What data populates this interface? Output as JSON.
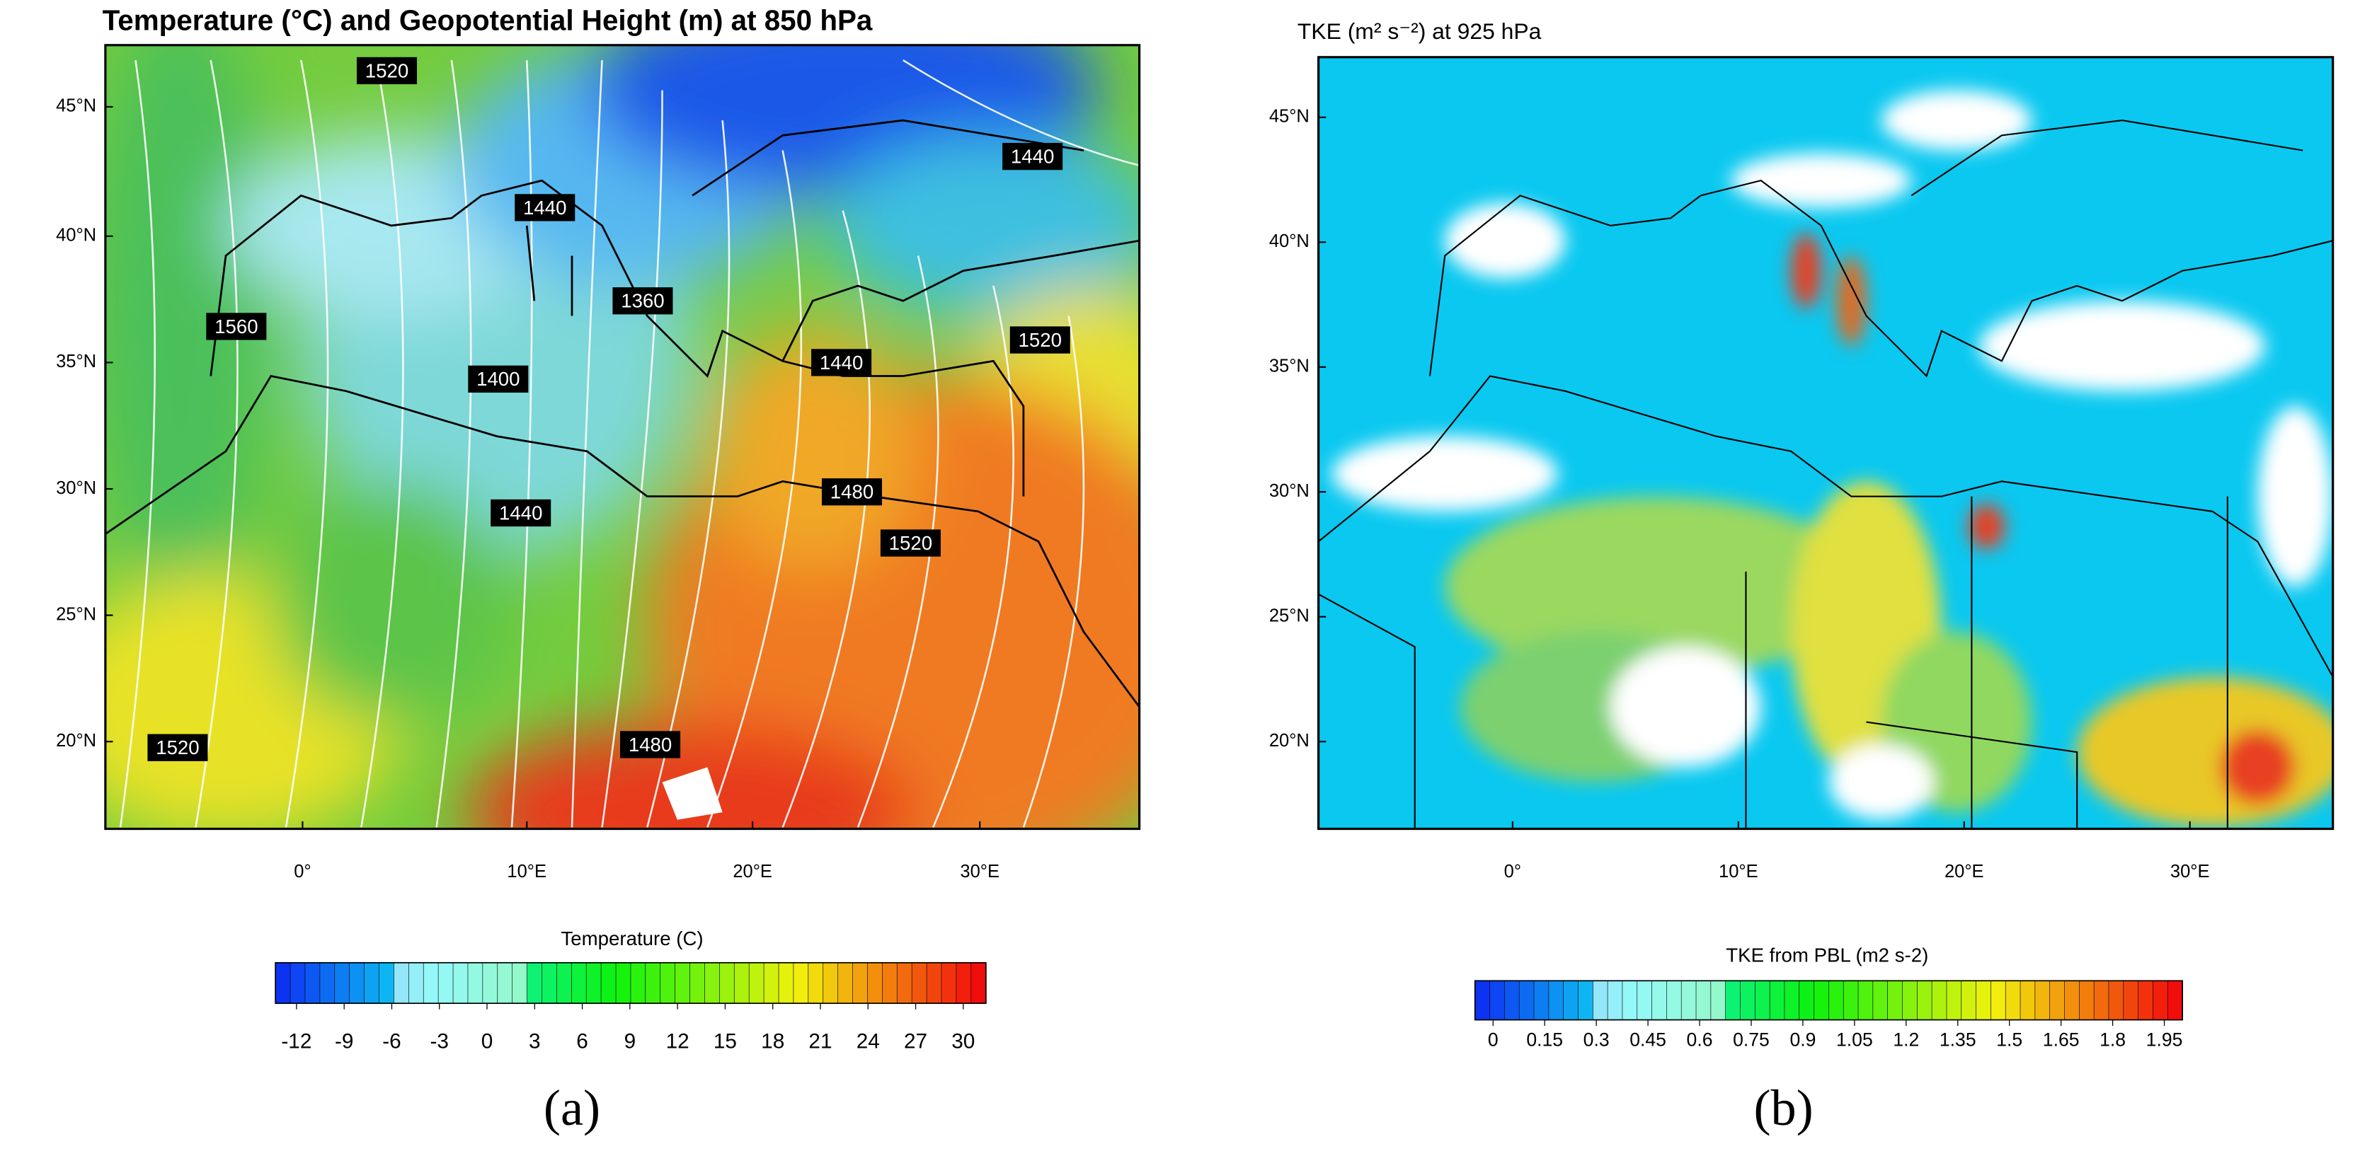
{
  "panels": [
    {
      "title": "Temperature (°C) and Geopotential Height (m) at 850 hPa",
      "lat_labels": [
        "45°N",
        "40°N",
        "35°N",
        "30°N",
        "25°N",
        "20°N"
      ],
      "lon_labels": [
        "0°",
        "10°E",
        "20°E",
        "30°E"
      ],
      "contour_labels": [
        1520,
        1440,
        1440,
        1360,
        1560,
        1400,
        1440,
        1520,
        1480,
        1440,
        1520,
        1520,
        1480
      ],
      "colorbar": {
        "title": "Temperature  (C)",
        "ticks": [
          -12,
          -9,
          -6,
          -3,
          0,
          3,
          6,
          9,
          12,
          15,
          18,
          21,
          24,
          27,
          30
        ]
      },
      "caption": "(a)"
    },
    {
      "title": "TKE (m² s⁻²) at 925 hPa",
      "lat_labels": [
        "45°N",
        "40°N",
        "35°N",
        "30°N",
        "25°N",
        "20°N"
      ],
      "lon_labels": [
        "0°",
        "10°E",
        "20°E",
        "30°E"
      ],
      "colorbar": {
        "title": "TKE from PBL  (m2 s-2)",
        "ticks": [
          0,
          0.15,
          0.3,
          0.45,
          0.6,
          0.75,
          0.9,
          1.05,
          1.2,
          1.35,
          1.5,
          1.65,
          1.8,
          1.95
        ]
      },
      "caption": "(b)"
    }
  ]
}
